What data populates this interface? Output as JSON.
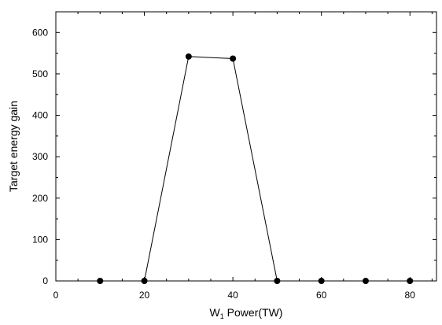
{
  "chart_data": {
    "type": "line",
    "title": "",
    "xlabel": "W",
    "xlabel_subscript": "1",
    "xlabel_suffix": " Power(TW)",
    "ylabel": "Target energy gain",
    "xlim": [
      0,
      86
    ],
    "ylim": [
      0,
      650
    ],
    "xticks": [
      0,
      20,
      40,
      60,
      80
    ],
    "yticks": [
      0,
      100,
      200,
      300,
      400,
      500,
      600
    ],
    "grid": false,
    "legend": "none",
    "series": [
      {
        "x": [
          10,
          20,
          30,
          40,
          50,
          60,
          70,
          80
        ],
        "y": [
          0,
          0,
          542,
          537,
          0,
          0,
          0,
          0
        ]
      }
    ],
    "colors": {
      "line": "#000000",
      "marker": "#000000"
    }
  }
}
